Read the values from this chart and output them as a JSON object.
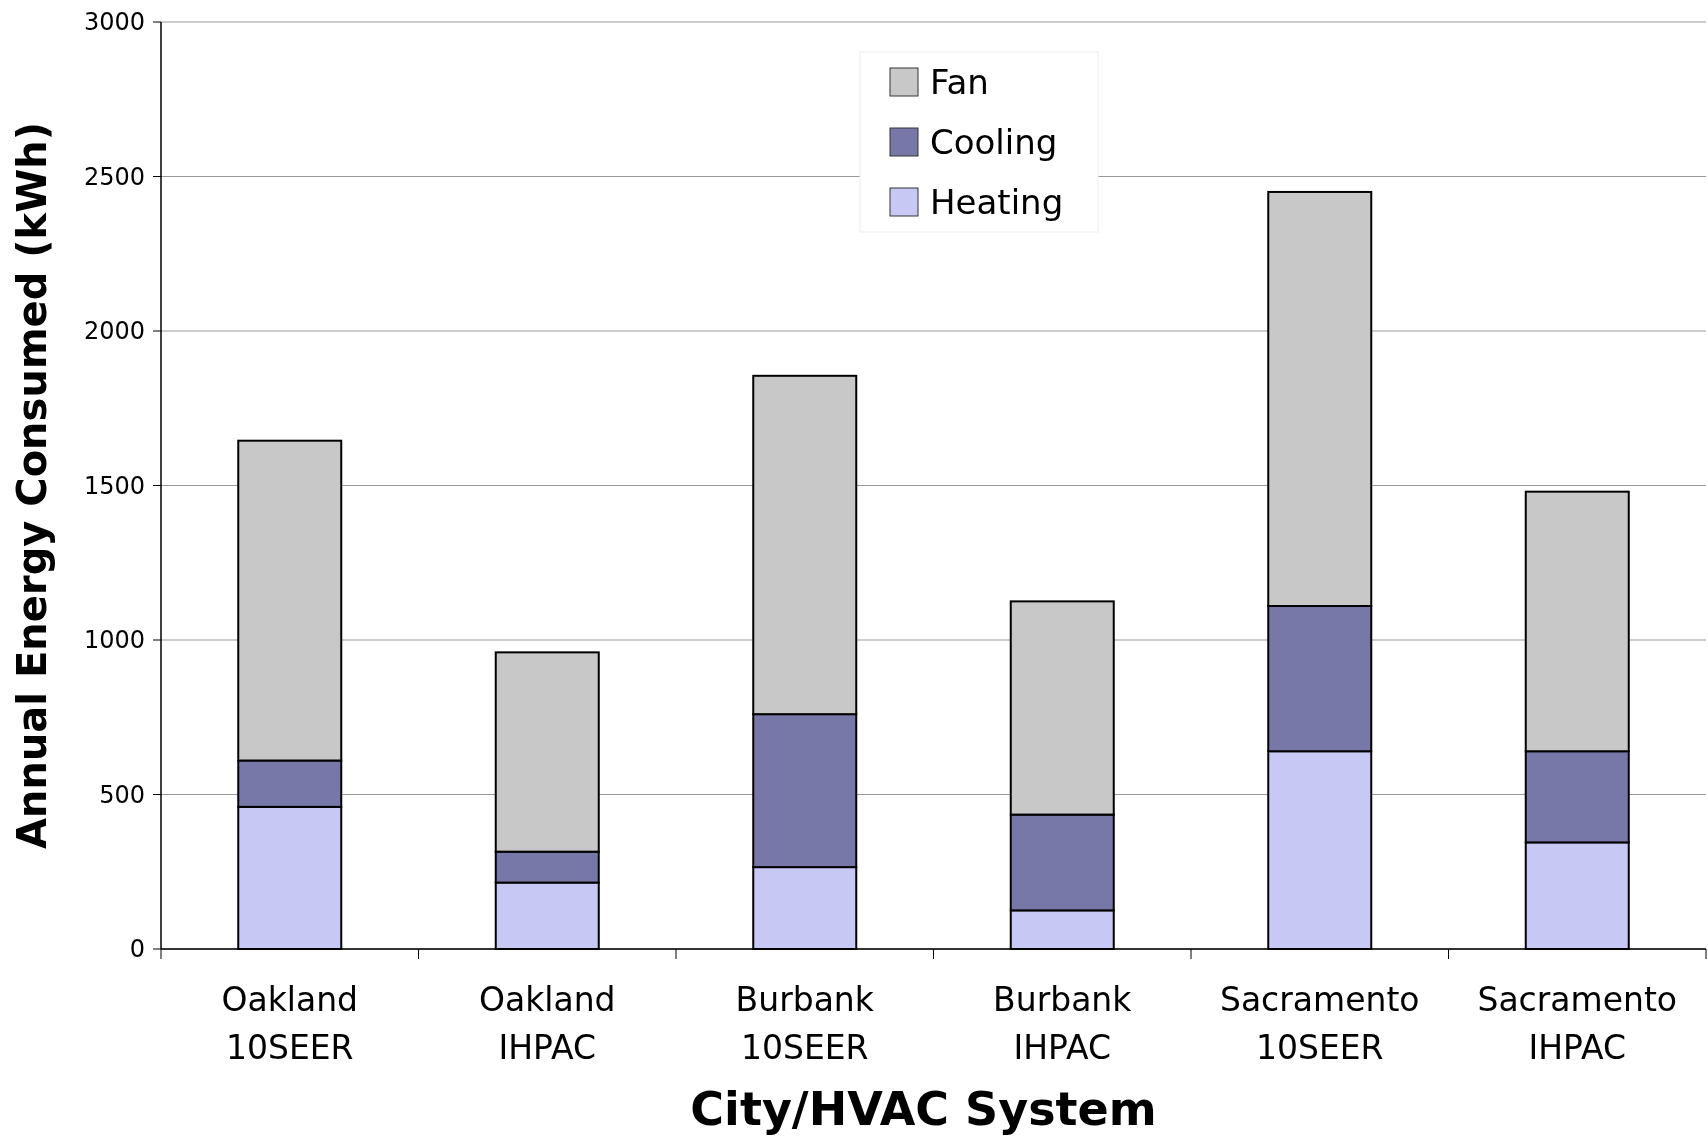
{
  "chart_data": {
    "type": "bar",
    "stacked": true,
    "xlabel": "City/HVAC System",
    "ylabel": "Annual Energy Consumed (kWh)",
    "categories": [
      "Oakland\n10SEER",
      "Oakland\nIHPAC",
      "Burbank\n10SEER",
      "Burbank\nIHPAC",
      "Sacramento\n10SEER",
      "Sacramento\nIHPAC"
    ],
    "series": [
      {
        "name": "Heating",
        "color": "#c8c8f4",
        "values": [
          460,
          215,
          265,
          125,
          640,
          345
        ]
      },
      {
        "name": "Cooling",
        "color": "#7878a8",
        "values": [
          150,
          100,
          495,
          310,
          470,
          295
        ]
      },
      {
        "name": "Fan",
        "color": "#c8c8c8",
        "values": [
          1035,
          645,
          1095,
          690,
          1340,
          840
        ]
      }
    ],
    "ylim": [
      0,
      3000
    ],
    "yticks": [
      0,
      500,
      1000,
      1500,
      2000,
      2500,
      3000
    ],
    "grid": "y",
    "legend": "top"
  }
}
